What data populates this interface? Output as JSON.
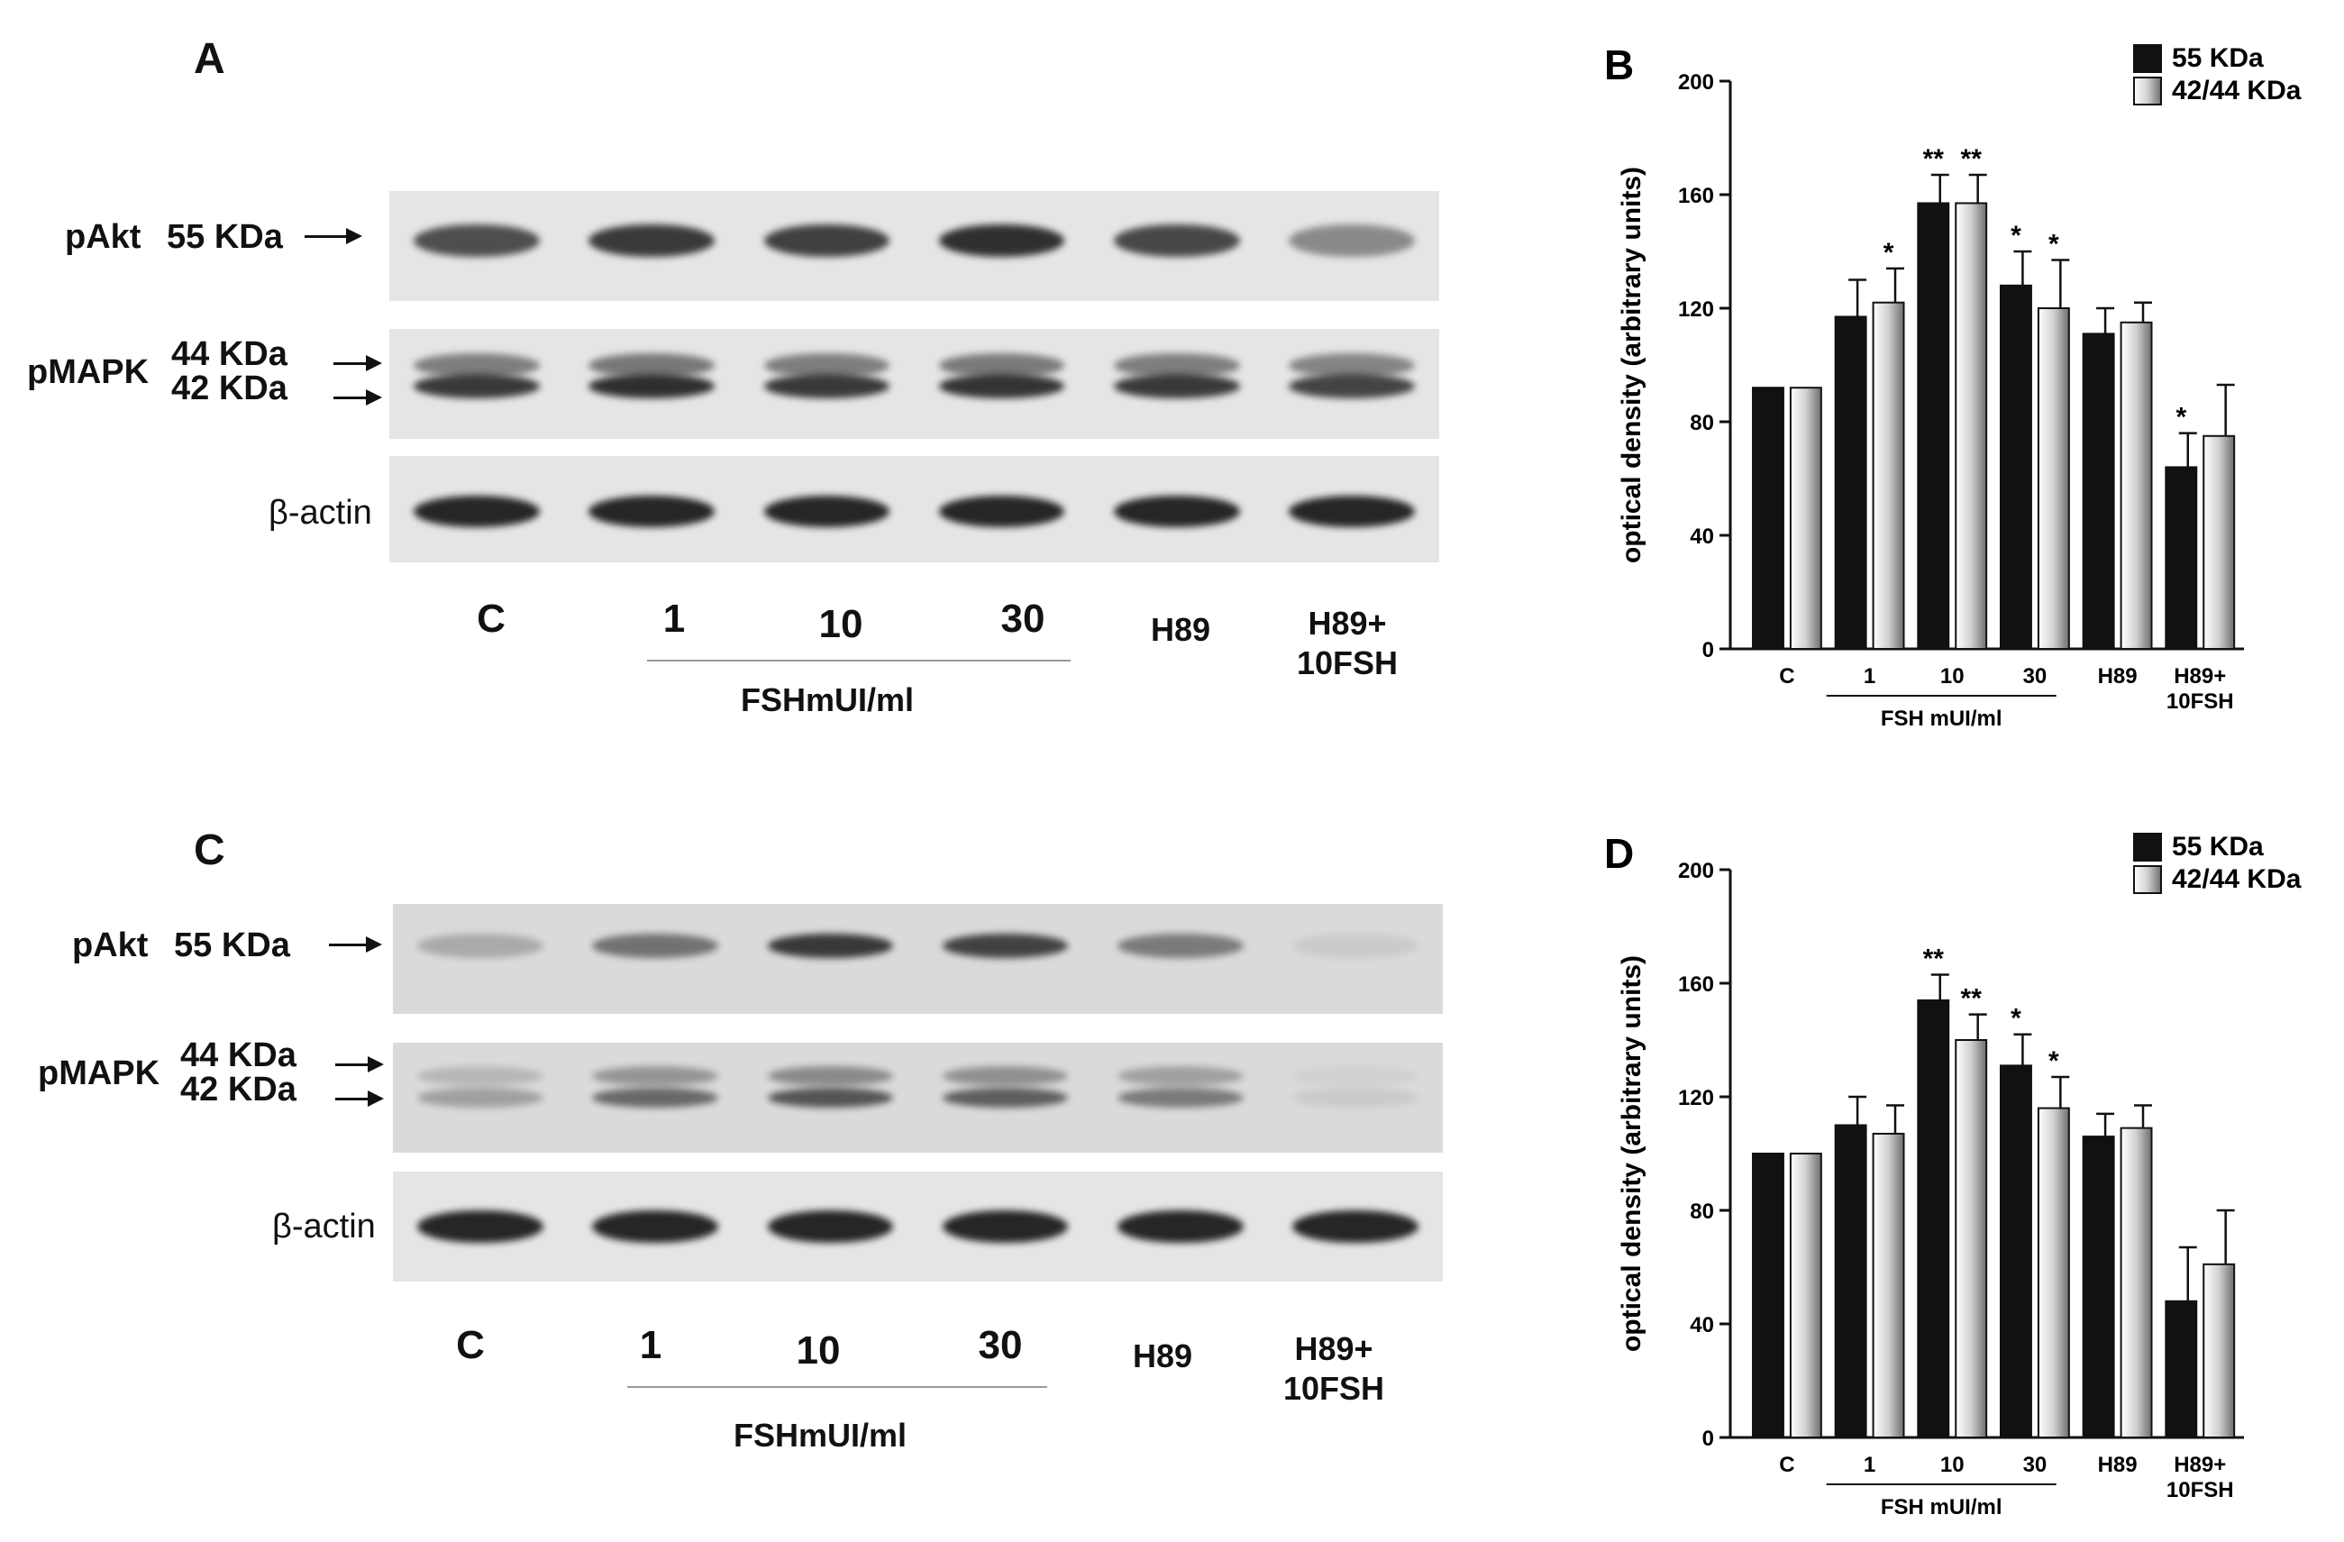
{
  "panels": {
    "A": {
      "letter": "A",
      "band_labels": {
        "pakt": "pAkt",
        "pakt_kda": "55 KDa",
        "pmapk": "pMAPK",
        "pmapk_kda_44": "44 KDa",
        "pmapk_kda_42": "42 KDa",
        "actin": "β-actin"
      },
      "lanes": [
        "C",
        "1",
        "10",
        "30",
        "H89",
        "H89+\n10FSH"
      ],
      "fsh_label": "FSHmUI/ml",
      "pakt_intensity": [
        0.75,
        0.85,
        0.82,
        0.9,
        0.78,
        0.45
      ],
      "pmapk_intensity": [
        0.85,
        0.9,
        0.85,
        0.88,
        0.85,
        0.8
      ],
      "actin_intensity": [
        0.95,
        0.95,
        0.95,
        0.95,
        0.95,
        0.95
      ]
    },
    "C": {
      "letter": "C",
      "band_labels": {
        "pakt": "pAkt",
        "pakt_kda": "55 KDa",
        "pmapk": "pMAPK",
        "pmapk_kda_44": "44 KDa",
        "pmapk_kda_42": "42 KDa",
        "actin": "β-actin"
      },
      "lanes": [
        "C",
        "1",
        "10",
        "30",
        "H89",
        "H89+\n10FSH"
      ],
      "fsh_label": "FSHmUI/ml",
      "pakt_intensity": [
        0.25,
        0.55,
        0.85,
        0.8,
        0.5,
        0.08
      ],
      "pmapk_intensity": [
        0.3,
        0.6,
        0.7,
        0.65,
        0.5,
        0.08
      ],
      "actin_intensity": [
        0.95,
        0.95,
        0.95,
        0.95,
        0.95,
        0.95
      ]
    }
  },
  "chart_data": [
    {
      "panel": "B",
      "type": "bar",
      "ylabel": "optical density (arbitrary units)",
      "ylim": [
        0,
        200
      ],
      "yticks": [
        0,
        40,
        80,
        120,
        160,
        200
      ],
      "categories": [
        "C",
        "1",
        "10",
        "30",
        "H89",
        "H89+\n10FSH"
      ],
      "group_label": "FSH mUI/ml",
      "legend_position": "top-right",
      "series": [
        {
          "name": "55 KDa",
          "color": "#111111",
          "values": [
            92,
            117,
            157,
            128,
            111,
            64
          ],
          "errors": [
            0,
            13,
            10,
            12,
            9,
            12
          ],
          "significance": [
            "",
            "",
            "**",
            "*",
            "",
            "*"
          ]
        },
        {
          "name": "42/44 KDa",
          "color": "#bdbdbd",
          "values": [
            92,
            122,
            157,
            120,
            115,
            75
          ],
          "errors": [
            0,
            12,
            10,
            17,
            7,
            18
          ],
          "significance": [
            "",
            "*",
            "**",
            "*",
            "",
            ""
          ]
        }
      ]
    },
    {
      "panel": "D",
      "type": "bar",
      "ylabel": "optical density (arbitrary units)",
      "ylim": [
        0,
        200
      ],
      "yticks": [
        0,
        40,
        80,
        120,
        160,
        200
      ],
      "categories": [
        "C",
        "1",
        "10",
        "30",
        "H89",
        "H89+\n10FSH"
      ],
      "group_label": "FSH mUI/ml",
      "legend_position": "top-right",
      "series": [
        {
          "name": "55 KDa",
          "color": "#111111",
          "values": [
            100,
            110,
            154,
            131,
            106,
            48
          ],
          "errors": [
            0,
            10,
            9,
            11,
            8,
            19
          ],
          "significance": [
            "",
            "",
            "**",
            "*",
            "",
            ""
          ]
        },
        {
          "name": "42/44 KDa",
          "color": "#bdbdbd",
          "values": [
            100,
            107,
            140,
            116,
            109,
            61
          ],
          "errors": [
            0,
            10,
            9,
            11,
            8,
            19
          ],
          "significance": [
            "",
            "",
            "**",
            "*",
            "",
            ""
          ]
        }
      ]
    }
  ]
}
